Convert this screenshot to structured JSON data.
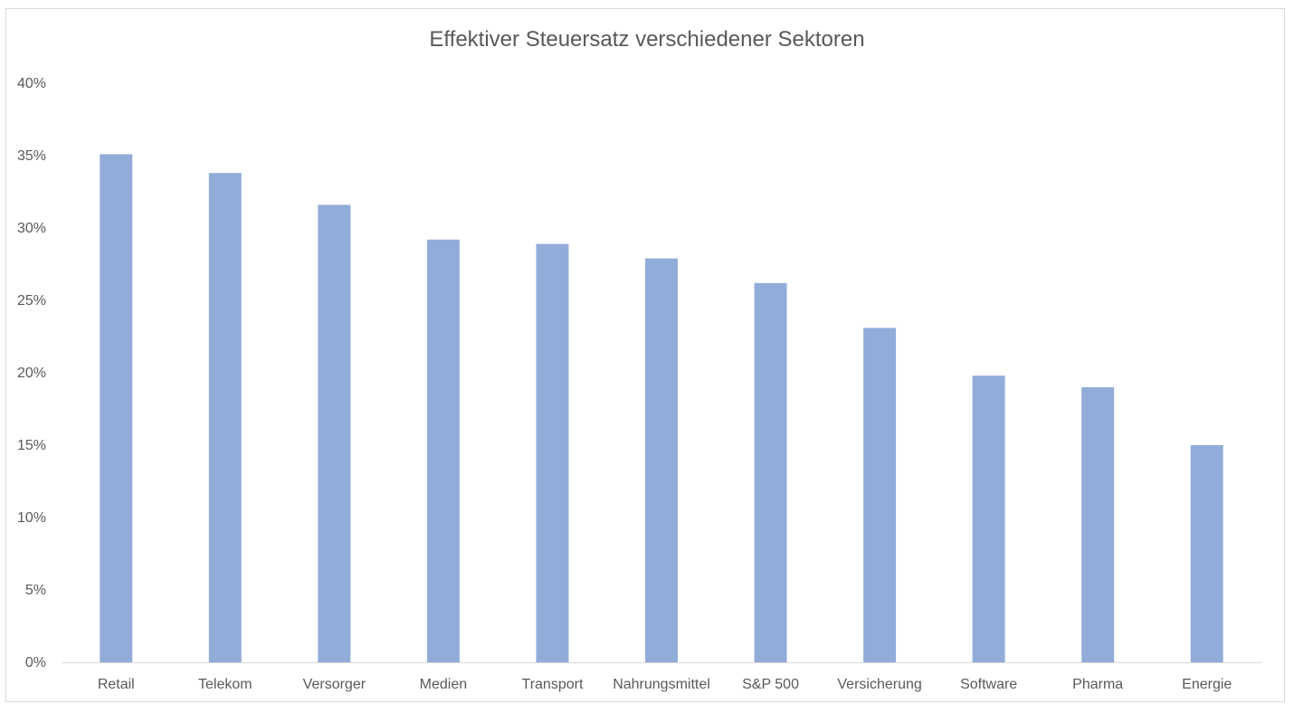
{
  "chart_data": {
    "type": "bar",
    "title": "Effektiver Steuersatz verschiedener Sektoren",
    "categories": [
      "Retail",
      "Telekom",
      "Versorger",
      "Medien",
      "Transport",
      "Nahrungsmittel",
      "S&P 500",
      "Versicherung",
      "Software",
      "Pharma",
      "Energie"
    ],
    "values": [
      35.1,
      33.8,
      31.6,
      29.2,
      28.9,
      27.9,
      26.2,
      23.1,
      19.8,
      19.0,
      15.0
    ],
    "value_format": "percent",
    "ylim": [
      0,
      40
    ],
    "yticks": [
      "0%",
      "5%",
      "10%",
      "15%",
      "20%",
      "25%",
      "30%",
      "35%",
      "40%"
    ],
    "ytick_values": [
      0,
      5,
      10,
      15,
      20,
      25,
      30,
      35,
      40
    ],
    "grid": false,
    "legend": "none",
    "bar_color": "#92ACDA",
    "axis_color": "#d9d9d9",
    "text_color": "#595959"
  }
}
